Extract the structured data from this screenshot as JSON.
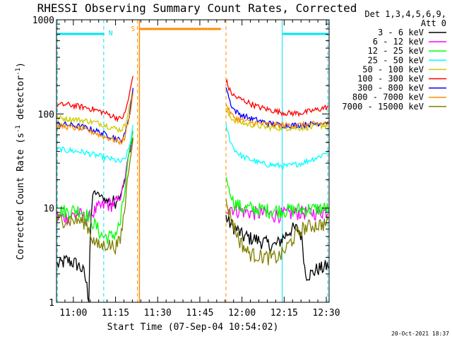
{
  "chart_data": {
    "type": "line",
    "title": "RHESSI Observing Summary Count Rates, Corrected",
    "xlabel": "Start Time (07-Sep-04 10:54:02)",
    "ylabel_main": "Corrected Count Rate (s",
    "ylabel_sup1": "-1",
    "ylabel_mid": " detector",
    "ylabel_sup2": "-1",
    "ylabel_end": ")",
    "y_scale": "log",
    "ylim": [
      1,
      1000
    ],
    "xlim_min": [
      0,
      97
    ],
    "x_tick_labels": [
      "11:00",
      "11:15",
      "11:30",
      "11:45",
      "12:00",
      "12:15",
      "12:30"
    ],
    "x_tick_min": [
      6,
      21,
      36,
      51,
      66,
      81,
      96
    ],
    "y_tick_labels": [
      "1",
      "10",
      "100",
      "1000"
    ],
    "y_tick_values": [
      1,
      10,
      100,
      1000
    ],
    "legend": {
      "header1": "Det 1,3,4,5,6,9,",
      "header2": "Att 0",
      "placement": "right"
    },
    "series": [
      {
        "name": "3 - 6 keV",
        "color": "#000000",
        "pre": [
          2.5,
          2.6,
          2.8,
          2.7,
          2.6,
          2.4,
          2.0,
          1.0,
          15.0,
          14.0,
          13.0,
          12.0,
          11.5,
          12.0,
          14.0,
          20.0,
          40.0,
          60.0
        ],
        "post": [
          8.0,
          7.0,
          6.5,
          6.0,
          5.5,
          5.0,
          5.0,
          4.8,
          4.8,
          4.6,
          4.5,
          4.4,
          4.2,
          4.0,
          4.0,
          4.2,
          4.6,
          5.0,
          5.5,
          6.0,
          6.0,
          6.0,
          5.0,
          2.0,
          2.0,
          2.0,
          2.2,
          2.3,
          2.3,
          2.4,
          2.5
        ]
      },
      {
        "name": "6 - 12 keV",
        "color": "#ff00ff",
        "pre": [
          8.0,
          8.2,
          8.0,
          8.3,
          8.5,
          8.6,
          8.0,
          7.8,
          9.0,
          10.0,
          10.5,
          11.0,
          11.0,
          11.5,
          13.0,
          20.0,
          40.0,
          70.0
        ],
        "post": [
          10.0,
          10.5,
          10.0,
          9.5,
          9.5,
          9.3,
          9.2,
          9.0,
          9.0,
          8.8,
          8.8,
          8.8,
          8.7,
          8.6,
          8.5,
          8.5,
          8.6,
          8.7,
          8.8,
          8.8,
          8.8,
          9.0,
          9.0,
          9.0,
          9.0,
          9.0,
          9.0,
          9.2,
          9.2,
          9.3,
          9.3
        ]
      },
      {
        "name": "12 - 25 keV",
        "color": "#00ff00",
        "pre": [
          9.0,
          9.5,
          9.2,
          9.4,
          9.6,
          9.5,
          9.0,
          8.0,
          7.0,
          6.0,
          5.0,
          5.0,
          5.0,
          5.5,
          7.0,
          15.0,
          40.0,
          70.0
        ],
        "post": [
          22.0,
          15.0,
          12.0,
          11.0,
          10.5,
          10.0,
          10.0,
          10.0,
          9.8,
          9.8,
          9.7,
          9.7,
          9.6,
          9.5,
          9.5,
          9.5,
          9.5,
          9.5,
          9.5,
          9.6,
          9.6,
          9.7,
          9.7,
          9.7,
          9.8,
          9.8,
          9.8,
          9.9,
          9.9,
          10.0,
          10.0
        ]
      },
      {
        "name": "25 - 50 keV",
        "color": "#00ffff",
        "pre": [
          42.0,
          42.0,
          41.0,
          41.0,
          40.0,
          40.0,
          39.0,
          38.0,
          37.0,
          36.0,
          35.0,
          34.0,
          33.0,
          32.0,
          31.0,
          33.0,
          45.0,
          80.0
        ],
        "post": [
          75.0,
          55.0,
          45.0,
          40.0,
          37.0,
          35.0,
          34.0,
          33.0,
          32.0,
          31.0,
          30.0,
          29.5,
          29.0,
          29.0,
          28.5,
          28.5,
          28.0,
          28.0,
          28.0,
          28.5,
          29.0,
          29.5,
          30.0,
          31.0,
          32.0,
          33.0,
          34.0,
          35.0,
          37.0,
          39.0,
          41.0
        ]
      },
      {
        "name": "50 - 100 keV",
        "color": "#cccc00",
        "pre": [
          90.0,
          90.0,
          89.0,
          88.0,
          88.0,
          86.0,
          85.0,
          84.0,
          82.0,
          80.0,
          78.0,
          75.0,
          72.0,
          70.0,
          68.0,
          75.0,
          120.0,
          200.0
        ],
        "post": [
          110.0,
          95.0,
          88.0,
          84.0,
          82.0,
          80.0,
          78.0,
          77.0,
          76.0,
          75.0,
          74.0,
          73.0,
          72.0,
          72.0,
          71.0,
          71.0,
          71.0,
          71.0,
          71.0,
          71.0,
          71.0,
          71.0,
          71.0,
          72.0,
          72.0,
          72.0,
          73.0,
          74.0,
          75.0,
          76.0,
          77.0
        ]
      },
      {
        "name": "100 - 300 keV",
        "color": "#ff0000",
        "pre": [
          125.0,
          125.0,
          126.0,
          124.0,
          122.0,
          120.0,
          118.0,
          115.0,
          112.0,
          108.0,
          105.0,
          100.0,
          96.0,
          92.0,
          88.0,
          100.0,
          160.0,
          280.0
        ],
        "post": [
          230.0,
          180.0,
          160.0,
          150.0,
          145.0,
          140.0,
          135.0,
          130.0,
          125.0,
          120.0,
          117.0,
          115.0,
          112.0,
          110.0,
          108.0,
          106.0,
          104.0,
          103.0,
          102.0,
          102.0,
          102.0,
          102.0,
          103.0,
          104.0,
          106.0,
          108.0,
          110.0,
          112.0,
          115.0,
          117.0,
          120.0
        ]
      },
      {
        "name": "300 - 800 keV",
        "color": "#0000ff",
        "pre": [
          78.0,
          78.0,
          77.0,
          76.0,
          75.0,
          74.0,
          72.0,
          70.0,
          68.0,
          65.0,
          62.0,
          60.0,
          58.0,
          55.0,
          52.0,
          60.0,
          100.0,
          200.0
        ],
        "post": [
          200.0,
          140.0,
          115.0,
          105.0,
          100.0,
          96.0,
          93.0,
          90.0,
          88.0,
          86.0,
          84.0,
          82.0,
          80.0,
          79.0,
          78.0,
          77.0,
          76.0,
          76.0,
          76.0,
          76.0,
          76.0,
          76.0,
          77.0,
          77.0,
          78.0,
          78.0,
          79.0,
          80.0,
          81.0,
          82.0,
          82.0
        ]
      },
      {
        "name": "800 - 7000 keV",
        "color": "#ff8c00",
        "pre": [
          74.0,
          74.0,
          73.0,
          72.0,
          71.0,
          70.0,
          68.0,
          66.0,
          64.0,
          61.0,
          58.0,
          56.0,
          54.0,
          52.0,
          50.0,
          56.0,
          95.0,
          180.0
        ],
        "post": [
          130.0,
          105.0,
          95.0,
          90.0,
          87.0,
          85.0,
          83.0,
          82.0,
          81.0,
          80.0,
          79.0,
          78.0,
          78.0,
          77.0,
          77.0,
          76.0,
          76.0,
          76.0,
          76.0,
          76.0,
          76.0,
          76.0,
          77.0,
          77.0,
          77.0,
          78.0,
          78.0,
          79.0,
          79.0,
          80.0,
          80.0
        ]
      },
      {
        "name": "7000 - 15000 keV",
        "color": "#808000",
        "pre": [
          7.5,
          7.5,
          7.6,
          7.4,
          7.5,
          7.3,
          7.2,
          6.0,
          4.5,
          4.0,
          4.0,
          4.2,
          4.0,
          4.0,
          4.5,
          10.0,
          30.0,
          60.0
        ],
        "post": [
          12.0,
          9.0,
          7.0,
          5.5,
          4.5,
          4.0,
          3.5,
          3.3,
          3.2,
          3.2,
          3.1,
          3.1,
          3.0,
          3.0,
          3.0,
          3.0,
          3.2,
          3.5,
          4.0,
          4.5,
          5.0,
          5.5,
          6.0,
          6.2,
          6.4,
          6.5,
          6.6,
          6.7,
          6.8,
          6.9,
          7.0
        ]
      }
    ],
    "pre_range_min": [
      0.3,
      27.6
    ],
    "post_range_min": [
      60.3,
      97.0
    ],
    "annotations": {
      "n_label": "N",
      "s_label": "S",
      "n_bar_min": [
        [
          0.5,
          17.0
        ],
        [
          80.5,
          96.5
        ]
      ],
      "s_bar_min": [
        29.5,
        58.5
      ],
      "cyan_dash_min": [
        0.3,
        16.8,
        96.5
      ],
      "cyan_solid_min": 80.3,
      "orange_dash_min": [
        28.8,
        60.3
      ],
      "orange_solid_min": 29.5
    },
    "grid": false
  },
  "footer": {
    "timestamp": "20-Oct-2021 18:37"
  }
}
